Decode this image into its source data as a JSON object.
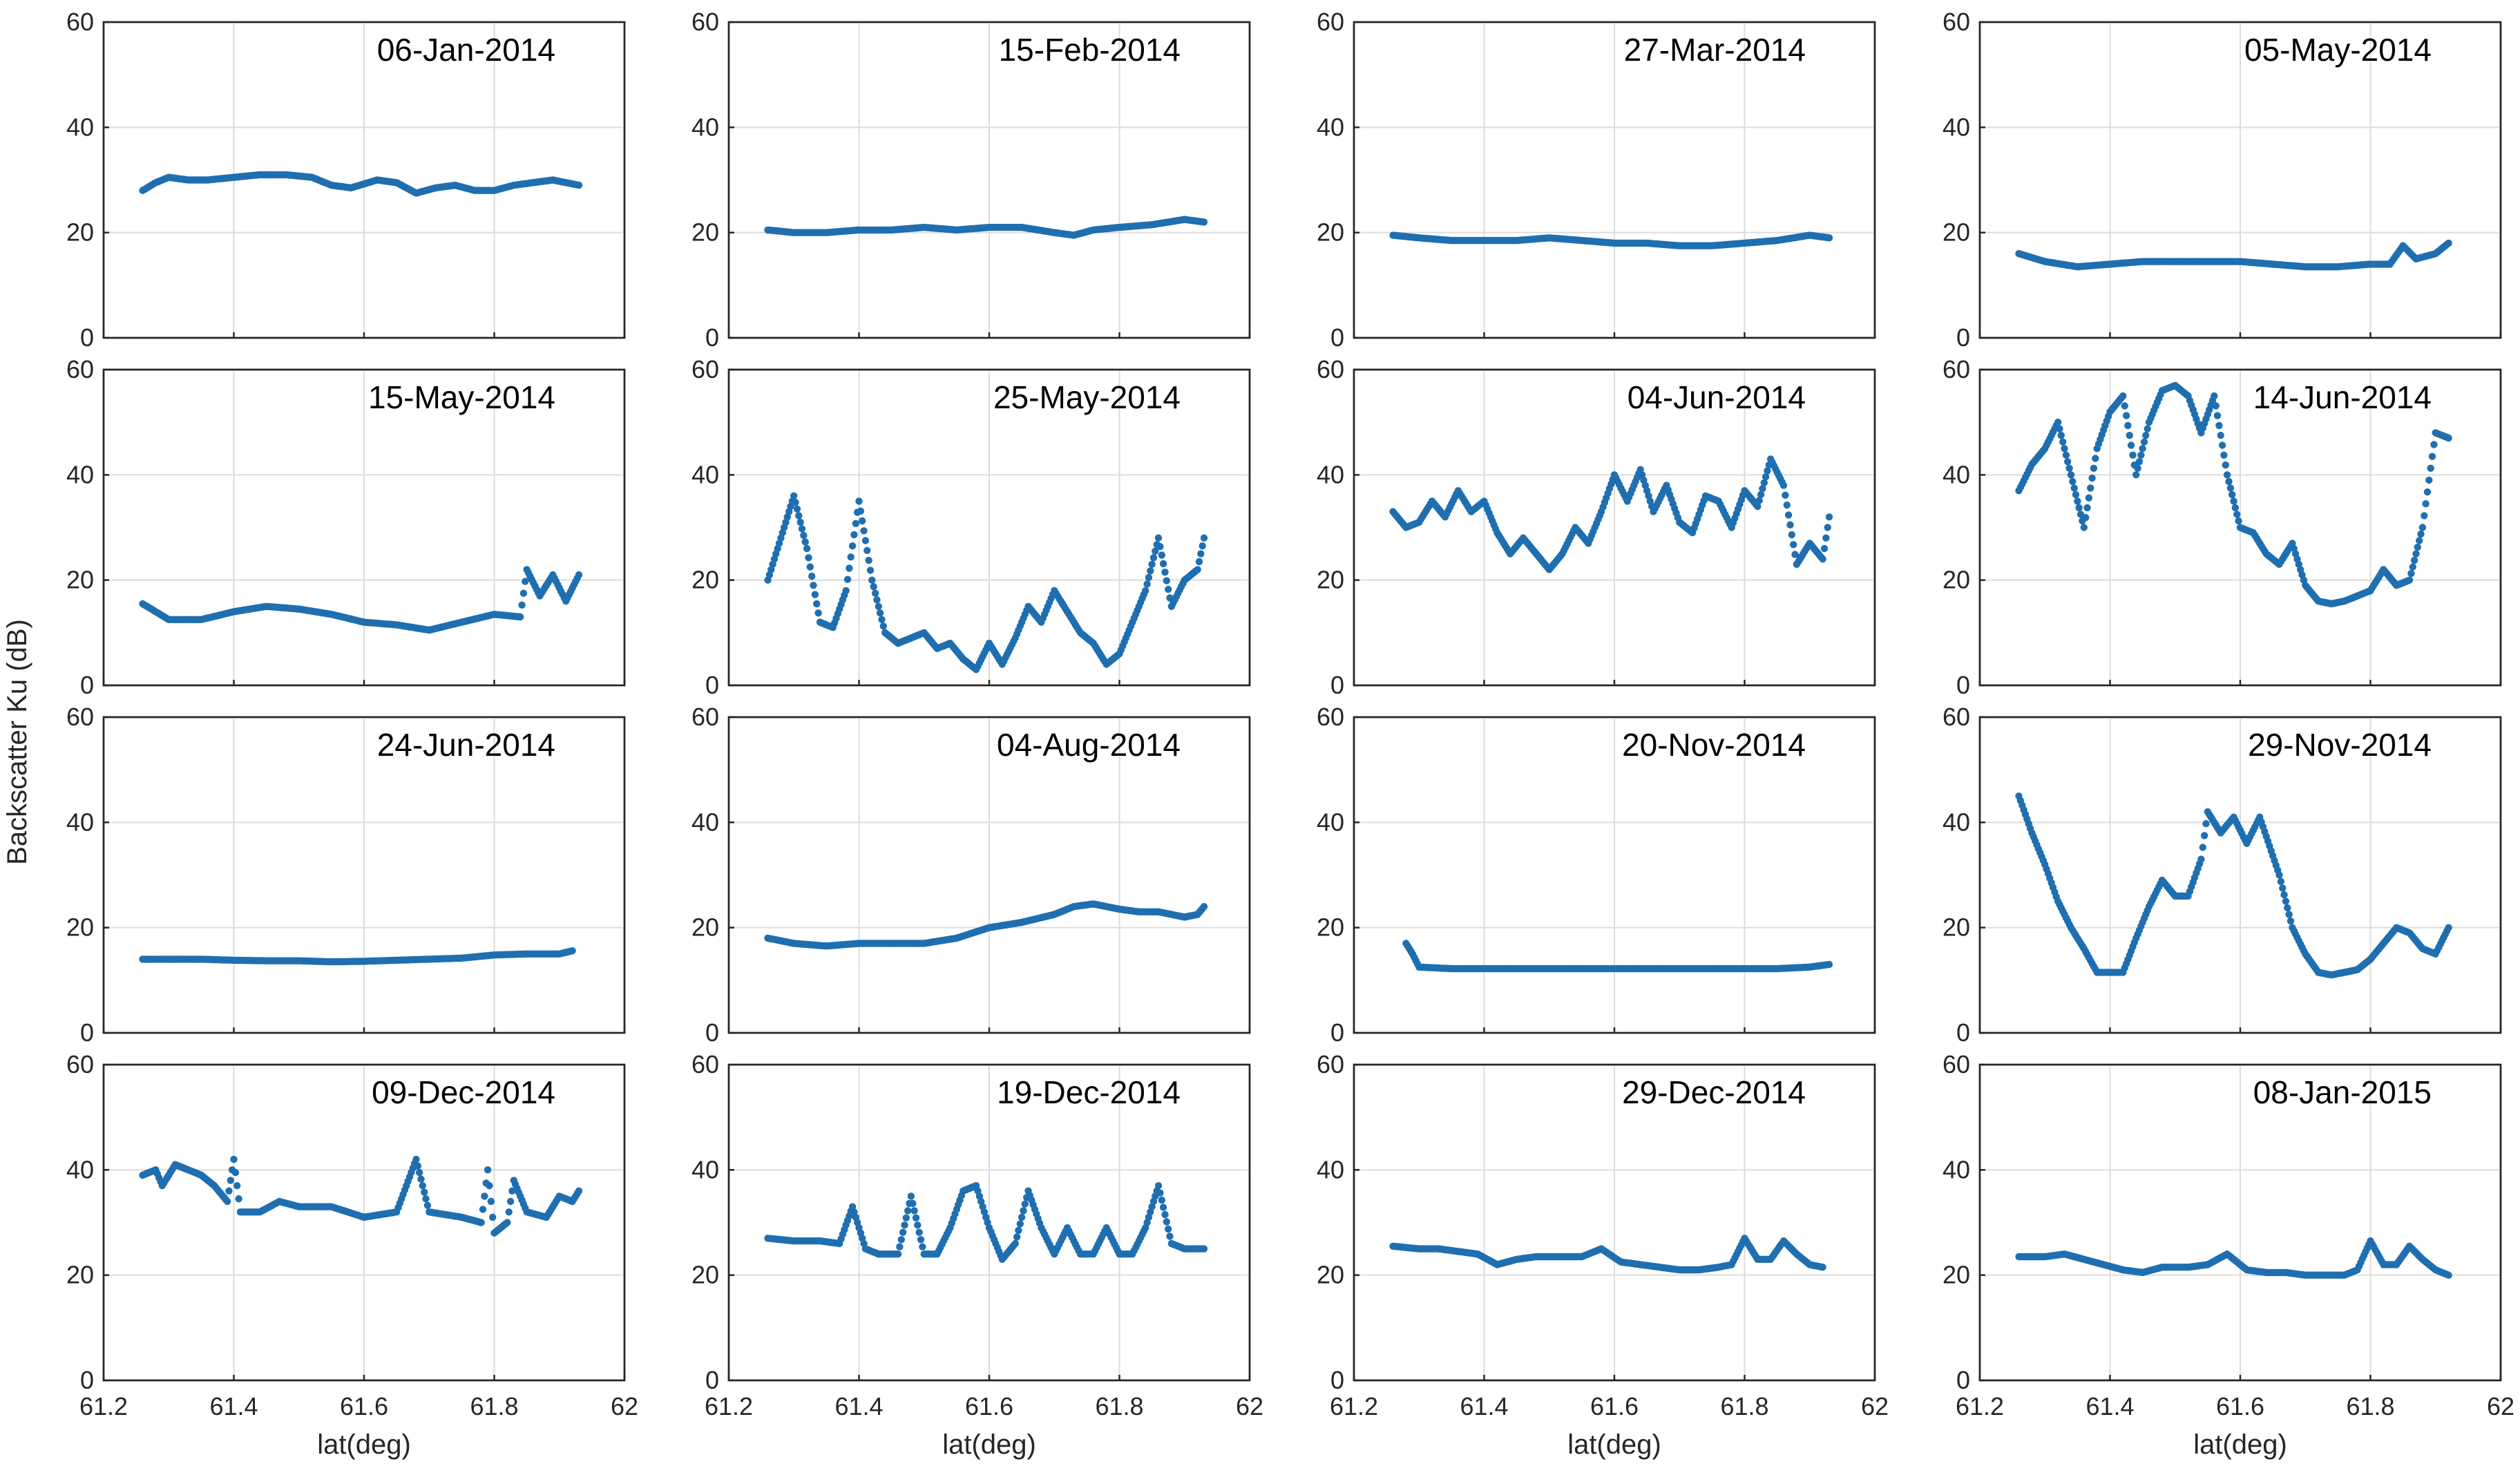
{
  "figure": {
    "ylabel": "Backscatter Ku (dB)",
    "xlabel": "lat(deg)",
    "x_ticks": [
      "61.2",
      "61.4",
      "61.6",
      "61.8",
      "62"
    ],
    "y_ticks": [
      "0",
      "20",
      "40",
      "60"
    ],
    "marker_color": "#1f6fb0"
  },
  "chart_data": [
    {
      "type": "scatter",
      "title": "06-Jan-2014",
      "xlim": [
        61.2,
        62
      ],
      "ylim": [
        0,
        60
      ],
      "xlabel": "",
      "ylabel": "",
      "x": [
        61.26,
        61.28,
        61.3,
        61.33,
        61.36,
        61.4,
        61.44,
        61.48,
        61.52,
        61.55,
        61.58,
        61.62,
        61.65,
        61.68,
        61.71,
        61.74,
        61.77,
        61.8,
        61.83,
        61.86,
        61.89,
        61.91,
        61.93
      ],
      "y": [
        28,
        29.5,
        30.5,
        30,
        30,
        30.5,
        31,
        31,
        30.5,
        29,
        28.5,
        30,
        29.5,
        27.5,
        28.5,
        29,
        28,
        28,
        29,
        29.5,
        30,
        29.5,
        29
      ]
    },
    {
      "type": "scatter",
      "title": "15-Feb-2014",
      "xlim": [
        61.2,
        62
      ],
      "ylim": [
        0,
        60
      ],
      "xlabel": "",
      "ylabel": "",
      "x": [
        61.26,
        61.3,
        61.35,
        61.4,
        61.45,
        61.5,
        61.55,
        61.6,
        61.65,
        61.7,
        61.73,
        61.76,
        61.8,
        61.85,
        61.9,
        61.93
      ],
      "y": [
        20.5,
        20,
        20,
        20.5,
        20.5,
        21,
        20.5,
        21,
        21,
        20,
        19.5,
        20.5,
        21,
        21.5,
        22.5,
        22
      ]
    },
    {
      "type": "scatter",
      "title": "27-Mar-2014",
      "xlim": [
        61.2,
        62
      ],
      "ylim": [
        0,
        60
      ],
      "xlabel": "",
      "ylabel": "",
      "x": [
        61.26,
        61.3,
        61.35,
        61.4,
        61.45,
        61.5,
        61.55,
        61.6,
        61.65,
        61.7,
        61.75,
        61.8,
        61.85,
        61.9,
        61.93
      ],
      "y": [
        19.5,
        19,
        18.5,
        18.5,
        18.5,
        19,
        18.5,
        18,
        18,
        17.5,
        17.5,
        18,
        18.5,
        19.5,
        19
      ]
    },
    {
      "type": "scatter",
      "title": "05-May-2014",
      "xlim": [
        61.2,
        62
      ],
      "ylim": [
        0,
        60
      ],
      "xlabel": "",
      "ylabel": "",
      "x": [
        61.26,
        61.3,
        61.35,
        61.4,
        61.45,
        61.5,
        61.55,
        61.6,
        61.65,
        61.7,
        61.75,
        61.8,
        61.83,
        61.85,
        61.87,
        61.9,
        61.92
      ],
      "y": [
        16,
        14.5,
        13.5,
        14,
        14.5,
        14.5,
        14.5,
        14.5,
        14,
        13.5,
        13.5,
        14,
        14,
        17.5,
        15,
        16,
        18
      ]
    },
    {
      "type": "scatter",
      "title": "15-May-2014",
      "xlim": [
        61.2,
        62
      ],
      "ylim": [
        0,
        60
      ],
      "xlabel": "",
      "ylabel": "",
      "x": [
        61.26,
        61.28,
        61.3,
        61.35,
        61.4,
        61.45,
        61.5,
        61.55,
        61.6,
        61.65,
        61.7,
        61.75,
        61.8,
        61.84,
        61.85,
        61.87,
        61.89,
        61.91,
        61.93
      ],
      "y": [
        15.5,
        14,
        12.5,
        12.5,
        14,
        15,
        14.5,
        13.5,
        12,
        11.5,
        10.5,
        12,
        13.5,
        13,
        22,
        17,
        21,
        16,
        21
      ]
    },
    {
      "type": "scatter",
      "title": "25-May-2014",
      "xlim": [
        61.2,
        62
      ],
      "ylim": [
        0,
        60
      ],
      "xlabel": "",
      "ylabel": "",
      "x": [
        61.26,
        61.28,
        61.3,
        61.32,
        61.34,
        61.36,
        61.38,
        61.4,
        61.42,
        61.44,
        61.46,
        61.48,
        61.5,
        61.52,
        61.54,
        61.56,
        61.58,
        61.6,
        61.62,
        61.64,
        61.66,
        61.68,
        61.7,
        61.72,
        61.74,
        61.76,
        61.78,
        61.8,
        61.82,
        61.84,
        61.86,
        61.88,
        61.9,
        61.92,
        61.93
      ],
      "y": [
        20,
        28,
        36,
        26,
        12,
        11,
        18,
        35,
        20,
        10,
        8,
        9,
        10,
        7,
        8,
        5,
        3,
        8,
        4,
        9,
        15,
        12,
        18,
        14,
        10,
        8,
        4,
        6,
        12,
        18,
        28,
        15,
        20,
        22,
        28
      ]
    },
    {
      "type": "scatter",
      "title": "04-Jun-2014",
      "xlim": [
        61.2,
        62
      ],
      "ylim": [
        0,
        60
      ],
      "xlabel": "",
      "ylabel": "",
      "x": [
        61.26,
        61.28,
        61.3,
        61.32,
        61.34,
        61.36,
        61.38,
        61.4,
        61.42,
        61.44,
        61.46,
        61.48,
        61.5,
        61.52,
        61.54,
        61.56,
        61.58,
        61.6,
        61.62,
        61.64,
        61.66,
        61.68,
        61.7,
        61.72,
        61.74,
        61.76,
        61.78,
        61.8,
        61.82,
        61.84,
        61.86,
        61.88,
        61.9,
        61.92,
        61.93
      ],
      "y": [
        33,
        30,
        31,
        35,
        32,
        37,
        33,
        35,
        29,
        25,
        28,
        25,
        22,
        25,
        30,
        27,
        33,
        40,
        35,
        41,
        33,
        38,
        31,
        29,
        36,
        35,
        30,
        37,
        34,
        43,
        38,
        23,
        27,
        24,
        32
      ]
    },
    {
      "type": "scatter",
      "title": "14-Jun-2014",
      "xlim": [
        61.2,
        62
      ],
      "ylim": [
        0,
        60
      ],
      "xlabel": "",
      "ylabel": "",
      "x": [
        61.26,
        61.28,
        61.3,
        61.32,
        61.34,
        61.36,
        61.38,
        61.4,
        61.42,
        61.44,
        61.46,
        61.48,
        61.5,
        61.52,
        61.54,
        61.56,
        61.58,
        61.6,
        61.62,
        61.64,
        61.66,
        61.68,
        61.7,
        61.72,
        61.74,
        61.76,
        61.78,
        61.8,
        61.82,
        61.84,
        61.86,
        61.88,
        61.9,
        61.92
      ],
      "y": [
        37,
        42,
        45,
        50,
        40,
        30,
        45,
        52,
        55,
        40,
        50,
        56,
        57,
        55,
        48,
        55,
        40,
        30,
        29,
        25,
        23,
        27,
        19,
        16,
        15.5,
        16,
        17,
        18,
        22,
        19,
        20,
        30,
        48,
        47
      ]
    },
    {
      "type": "scatter",
      "title": "24-Jun-2014",
      "xlim": [
        61.2,
        62
      ],
      "ylim": [
        0,
        60
      ],
      "xlabel": "",
      "ylabel": "",
      "x": [
        61.26,
        61.3,
        61.35,
        61.4,
        61.45,
        61.5,
        61.55,
        61.6,
        61.65,
        61.7,
        61.75,
        61.8,
        61.85,
        61.9,
        61.92
      ],
      "y": [
        14,
        14,
        14,
        13.8,
        13.7,
        13.7,
        13.5,
        13.6,
        13.8,
        14,
        14.2,
        14.8,
        15,
        15,
        15.6
      ]
    },
    {
      "type": "scatter",
      "title": "04-Aug-2014",
      "xlim": [
        61.2,
        62
      ],
      "ylim": [
        0,
        60
      ],
      "xlabel": "",
      "ylabel": "",
      "x": [
        61.26,
        61.3,
        61.35,
        61.4,
        61.45,
        61.5,
        61.55,
        61.6,
        61.65,
        61.7,
        61.73,
        61.76,
        61.8,
        61.83,
        61.86,
        61.88,
        61.9,
        61.92,
        61.93
      ],
      "y": [
        18,
        17,
        16.5,
        17,
        17,
        17,
        18,
        20,
        21,
        22.5,
        24,
        24.5,
        23.5,
        23,
        23,
        22.5,
        22,
        22.5,
        24
      ]
    },
    {
      "type": "scatter",
      "title": "20-Nov-2014",
      "xlim": [
        61.2,
        62
      ],
      "ylim": [
        0,
        60
      ],
      "xlabel": "",
      "ylabel": "",
      "x": [
        61.28,
        61.29,
        61.3,
        61.35,
        61.4,
        61.45,
        61.5,
        61.55,
        61.6,
        61.65,
        61.7,
        61.75,
        61.8,
        61.85,
        61.9,
        61.93
      ],
      "y": [
        17,
        15,
        12.5,
        12.2,
        12.2,
        12.2,
        12.2,
        12.2,
        12.2,
        12.2,
        12.2,
        12.2,
        12.2,
        12.2,
        12.5,
        13
      ]
    },
    {
      "type": "scatter",
      "title": "29-Nov-2014",
      "xlim": [
        61.2,
        62
      ],
      "ylim": [
        0,
        60
      ],
      "xlabel": "",
      "ylabel": "",
      "x": [
        61.26,
        61.28,
        61.3,
        61.32,
        61.34,
        61.36,
        61.38,
        61.4,
        61.42,
        61.44,
        61.46,
        61.48,
        61.5,
        61.52,
        61.54,
        61.55,
        61.57,
        61.59,
        61.61,
        61.63,
        61.66,
        61.68,
        61.7,
        61.72,
        61.74,
        61.76,
        61.78,
        61.8,
        61.82,
        61.84,
        61.86,
        61.88,
        61.9,
        61.92
      ],
      "y": [
        45,
        38,
        32,
        25,
        20,
        16,
        11.5,
        11.5,
        11.5,
        18,
        24,
        29,
        26,
        26,
        33,
        42,
        38,
        41,
        36,
        41,
        30,
        20,
        15,
        11.5,
        11,
        11.5,
        12,
        14,
        17,
        20,
        19,
        16,
        15,
        20
      ]
    },
    {
      "type": "scatter",
      "title": "09-Dec-2014",
      "xlim": [
        61.2,
        62
      ],
      "ylim": [
        0,
        60
      ],
      "xlabel": "",
      "ylabel": "",
      "x": [
        61.26,
        61.28,
        61.29,
        61.31,
        61.33,
        61.35,
        61.37,
        61.39,
        61.4,
        61.41,
        61.44,
        61.47,
        61.5,
        61.55,
        61.6,
        61.65,
        61.68,
        61.7,
        61.75,
        61.78,
        61.79,
        61.8,
        61.82,
        61.83,
        61.85,
        61.88,
        61.9,
        61.92,
        61.93
      ],
      "y": [
        39,
        40,
        37,
        41,
        40,
        39,
        37,
        34,
        42,
        32,
        32,
        34,
        33,
        33,
        31,
        32,
        42,
        32,
        31,
        30,
        40,
        28,
        30,
        38,
        32,
        31,
        35,
        34,
        36
      ]
    },
    {
      "type": "scatter",
      "title": "19-Dec-2014",
      "xlim": [
        61.2,
        62
      ],
      "ylim": [
        0,
        60
      ],
      "xlabel": "",
      "ylabel": "",
      "x": [
        61.26,
        61.3,
        61.34,
        61.37,
        61.39,
        61.41,
        61.43,
        61.46,
        61.48,
        61.5,
        61.52,
        61.54,
        61.56,
        61.58,
        61.6,
        61.62,
        61.64,
        61.66,
        61.68,
        61.7,
        61.72,
        61.74,
        61.76,
        61.78,
        61.8,
        61.82,
        61.84,
        61.86,
        61.88,
        61.9,
        61.93
      ],
      "y": [
        27,
        26.5,
        26.5,
        26,
        33,
        25,
        24,
        24,
        35,
        24,
        24,
        29,
        36,
        37,
        29,
        23,
        26,
        36,
        29,
        24,
        29,
        24,
        24,
        29,
        24,
        24,
        29,
        37,
        26,
        25,
        25
      ]
    },
    {
      "type": "scatter",
      "title": "29-Dec-2014",
      "xlim": [
        61.2,
        62
      ],
      "ylim": [
        0,
        60
      ],
      "xlabel": "",
      "ylabel": "",
      "x": [
        61.26,
        61.3,
        61.33,
        61.36,
        61.39,
        61.42,
        61.45,
        61.48,
        61.52,
        61.55,
        61.58,
        61.61,
        61.64,
        61.67,
        61.7,
        61.73,
        61.76,
        61.78,
        61.8,
        61.82,
        61.84,
        61.86,
        61.88,
        61.9,
        61.92
      ],
      "y": [
        25.5,
        25,
        25,
        24.5,
        24,
        22,
        23,
        23.5,
        23.5,
        23.5,
        25,
        22.5,
        22,
        21.5,
        21,
        21,
        21.5,
        22,
        27,
        23,
        23,
        26.5,
        24,
        22,
        21.5
      ]
    },
    {
      "type": "scatter",
      "title": "08-Jan-2015",
      "xlim": [
        61.2,
        62
      ],
      "ylim": [
        0,
        60
      ],
      "xlabel": "",
      "ylabel": "",
      "x": [
        61.26,
        61.3,
        61.33,
        61.36,
        61.39,
        61.42,
        61.45,
        61.48,
        61.52,
        61.55,
        61.58,
        61.61,
        61.64,
        61.67,
        61.7,
        61.73,
        61.76,
        61.78,
        61.8,
        61.82,
        61.84,
        61.86,
        61.88,
        61.9,
        61.92
      ],
      "y": [
        23.5,
        23.5,
        24,
        23,
        22,
        21,
        20.5,
        21.5,
        21.5,
        22,
        24,
        21,
        20.5,
        20.5,
        20,
        20,
        20,
        21,
        26.5,
        22,
        22,
        25.5,
        23,
        21,
        20
      ]
    }
  ]
}
